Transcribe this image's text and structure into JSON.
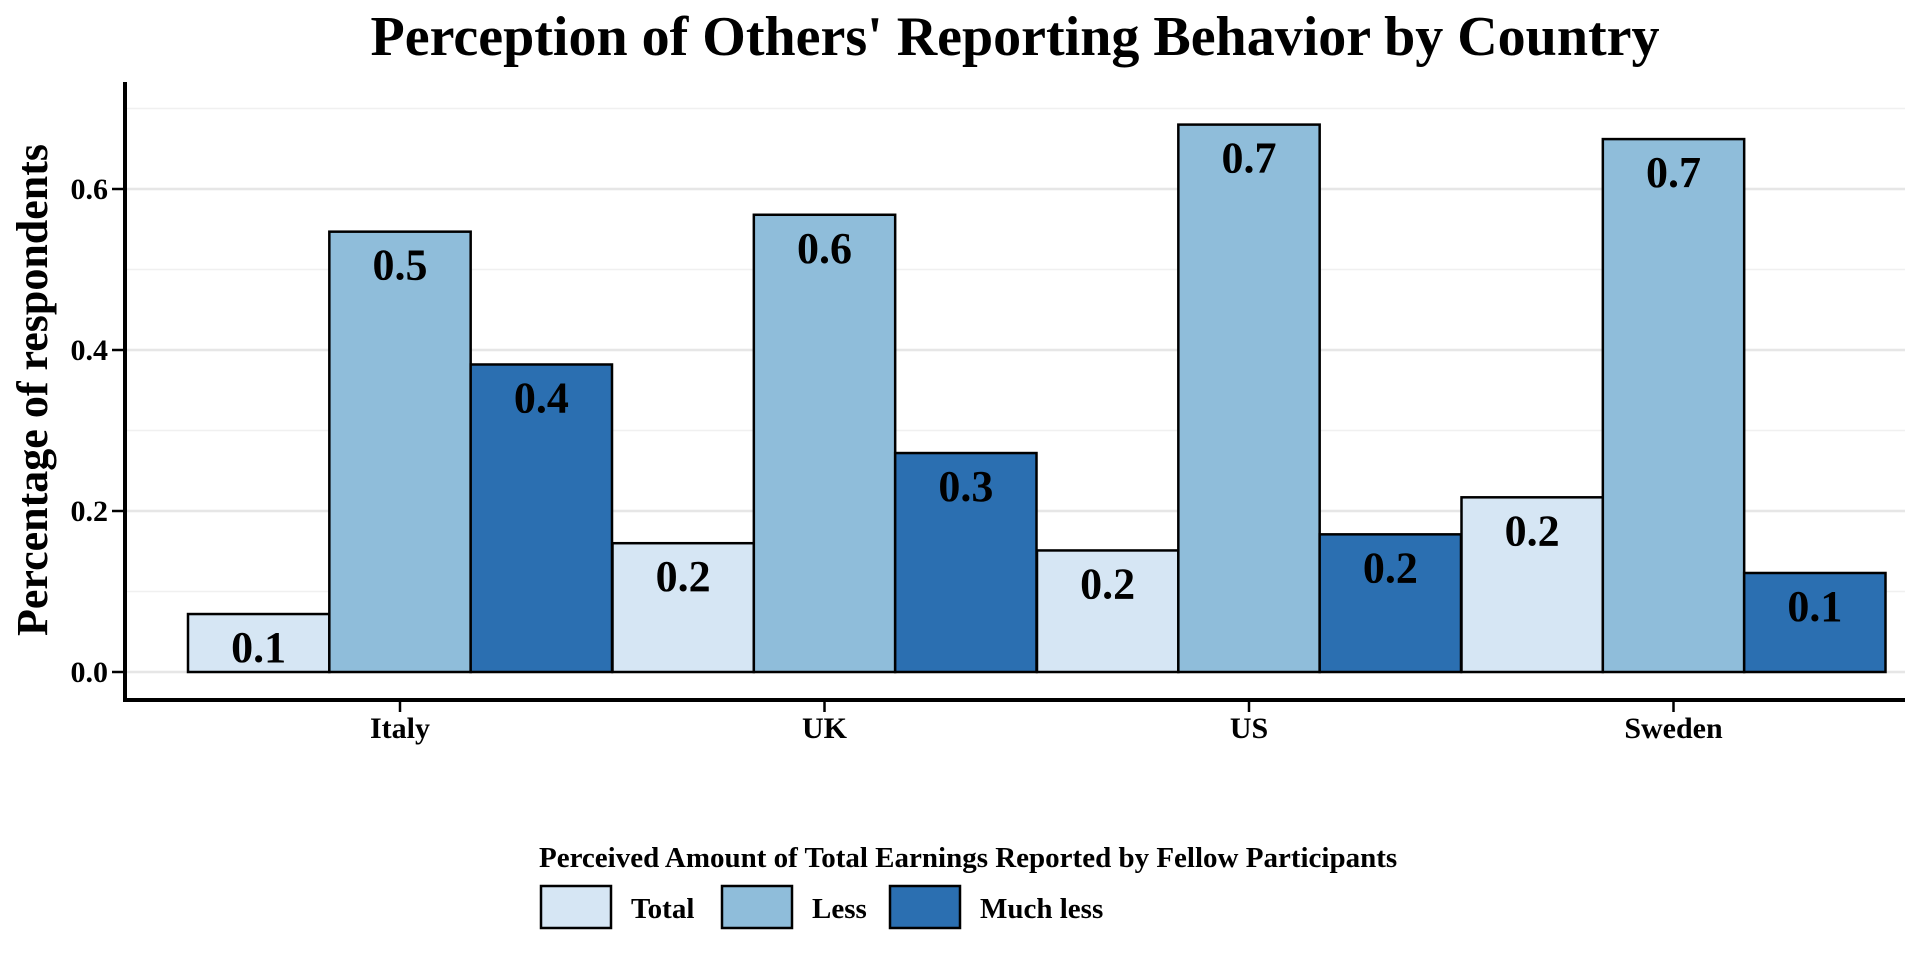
{
  "chart_data": {
    "type": "bar",
    "title": "Perception of Others' Reporting Behavior by Country",
    "xlabel": "",
    "ylabel": "Percentage of respondents",
    "categories": [
      "Italy",
      "UK",
      "US",
      "Sweden"
    ],
    "ylim": [
      0,
      0.7
    ],
    "yticks": [
      0.0,
      0.2,
      0.4,
      0.6
    ],
    "ytick_labels": [
      "0.0",
      "0.2",
      "0.4",
      "0.6"
    ],
    "grid": true,
    "legend": {
      "title": "Perceived Amount of Total Earnings Reported by Fellow Participants",
      "position": "bottom"
    },
    "series": [
      {
        "name": "Total",
        "color": "#d6e6f4",
        "values": [
          0.072,
          0.16,
          0.151,
          0.217
        ],
        "labels": [
          "0.1",
          "0.2",
          "0.2",
          "0.2"
        ]
      },
      {
        "name": "Less",
        "color": "#8fbdda",
        "values": [
          0.547,
          0.568,
          0.68,
          0.662
        ],
        "labels": [
          "0.5",
          "0.6",
          "0.7",
          "0.7"
        ]
      },
      {
        "name": "Much less",
        "color": "#2b6fb1",
        "values": [
          0.382,
          0.272,
          0.171,
          0.123
        ],
        "labels": [
          "0.4",
          "0.3",
          "0.2",
          "0.1"
        ]
      }
    ]
  }
}
